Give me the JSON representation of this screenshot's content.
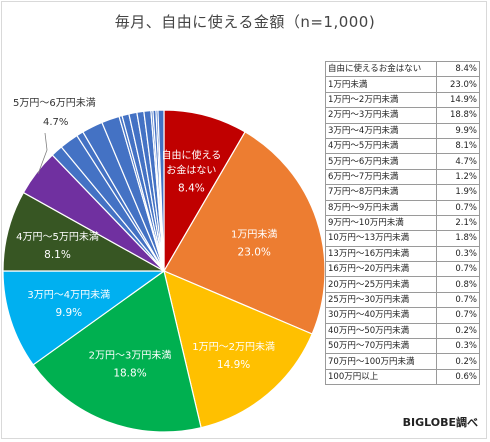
{
  "title": "毎月、自由に使える金額（n=1,000)",
  "source": "BIGLOBE調べ",
  "chart_data": {
    "type": "pie",
    "title": "毎月、自由に使える金額（n=1,000)",
    "unit": "%",
    "start": "12 o'clock",
    "direction": "clockwise",
    "slices": [
      {
        "label": "自由に使えるお金はない",
        "value": 8.4,
        "value_label": "8.4%",
        "color": "#c00000",
        "pie_label": [
          "自由に使える",
          "お金はない"
        ]
      },
      {
        "label": "1万円未満",
        "value": 23.0,
        "value_label": "23.0%",
        "color": "#ed7d31",
        "pie_label": [
          "1万円未満"
        ]
      },
      {
        "label": "1万円～2万円未満",
        "value": 14.9,
        "value_label": "14.9%",
        "color": "#ffc000",
        "pie_label": [
          "1万円～2万円未満"
        ]
      },
      {
        "label": "2万円～3万円未満",
        "value": 18.8,
        "value_label": "18.8%",
        "color": "#00b050",
        "pie_label": [
          "2万円～3万円未満"
        ]
      },
      {
        "label": "3万円～4万円未満",
        "value": 9.9,
        "value_label": "9.9%",
        "color": "#00b0f0",
        "pie_label": [
          "3万円～4万円未満"
        ]
      },
      {
        "label": "4万円～5万円未満",
        "value": 8.1,
        "value_label": "8.1%",
        "color": "#375623",
        "pie_label": [
          "4万円～5万円未満"
        ]
      },
      {
        "label": "5万円～6万円未満",
        "value": 4.7,
        "value_label": "4.7%",
        "color": "#7030a0",
        "pie_label": [
          "5万円～6万円未満"
        ]
      },
      {
        "label": "6万円～7万円未満",
        "value": 1.2,
        "value_label": "1.2%",
        "color": "#4472c4"
      },
      {
        "label": "7万円～8万円未満",
        "value": 1.9,
        "value_label": "1.9%",
        "color": "#4472c4"
      },
      {
        "label": "8万円～9万円未満",
        "value": 0.7,
        "value_label": "0.7%",
        "color": "#4472c4"
      },
      {
        "label": "9万円～10万円未満",
        "value": 2.1,
        "value_label": "2.1%",
        "color": "#4472c4"
      },
      {
        "label": "10万円～13万円未満",
        "value": 1.8,
        "value_label": "1.8%",
        "color": "#4472c4"
      },
      {
        "label": "13万円～16万円未満",
        "value": 0.3,
        "value_label": "0.3%",
        "color": "#4472c4"
      },
      {
        "label": "16万円～20万円未満",
        "value": 0.7,
        "value_label": "0.7%",
        "color": "#4472c4"
      },
      {
        "label": "20万円～25万円未満",
        "value": 0.8,
        "value_label": "0.8%",
        "color": "#4472c4"
      },
      {
        "label": "25万円～30万円未満",
        "value": 0.7,
        "value_label": "0.7%",
        "color": "#4472c4"
      },
      {
        "label": "30万円～40万円未満",
        "value": 0.7,
        "value_label": "0.7%",
        "color": "#4472c4"
      },
      {
        "label": "40万円～50万円未満",
        "value": 0.2,
        "value_label": "0.2%",
        "color": "#4472c4"
      },
      {
        "label": "50万円～70万円未満",
        "value": 0.3,
        "value_label": "0.3%",
        "color": "#4472c4"
      },
      {
        "label": "70万円～100万円未満",
        "value": 0.2,
        "value_label": "0.2%",
        "color": "#4472c4"
      },
      {
        "label": "100万円以上",
        "value": 0.6,
        "value_label": "0.6%",
        "color": "#4472c4"
      }
    ]
  }
}
